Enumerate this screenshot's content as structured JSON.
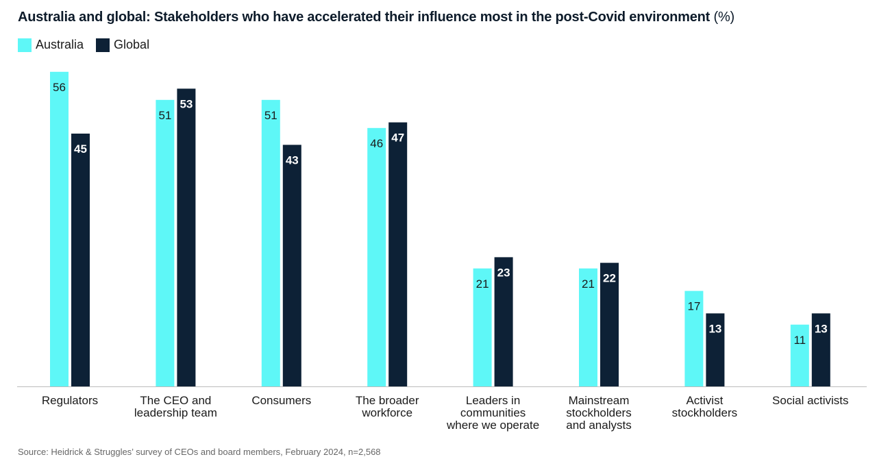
{
  "title": "Australia and global: Stakeholders who have accelerated their influence most in the post-Covid environment",
  "title_unit": "(%)",
  "source": "Source: Heidrick & Struggles’ survey of CEOs and board members, February 2024, n=2,568",
  "colors": {
    "australia": "#5ef7f7",
    "global": "#0d2136",
    "axis": "#bbbbbb"
  },
  "chart_data": {
    "type": "bar",
    "title": "Australia and global: Stakeholders who have accelerated their influence most in the post-Covid environment (%)",
    "categories": [
      "Regulators",
      "The CEO and leadership team",
      "Consumers",
      "The broader workforce",
      "Leaders in communities where we operate",
      "Mainstream stockholders and analysts",
      "Activist stockholders",
      "Social activists"
    ],
    "category_lines": [
      [
        "Regulators"
      ],
      [
        "The CEO and",
        "leadership team"
      ],
      [
        "Consumers"
      ],
      [
        "The broader",
        "workforce"
      ],
      [
        "Leaders in",
        "communities",
        "where we operate"
      ],
      [
        "Mainstream",
        "stockholders",
        "and analysts"
      ],
      [
        "Activist",
        "stockholders"
      ],
      [
        "Social activists"
      ]
    ],
    "series": [
      {
        "name": "Australia",
        "values": [
          56,
          51,
          51,
          46,
          21,
          21,
          17,
          11
        ]
      },
      {
        "name": "Global",
        "values": [
          45,
          53,
          43,
          47,
          23,
          22,
          13,
          13
        ]
      }
    ],
    "xlabel": "",
    "ylabel": "",
    "ylim": [
      0,
      56
    ],
    "grid": false,
    "legend_position": "top-left",
    "data_labels": true
  }
}
